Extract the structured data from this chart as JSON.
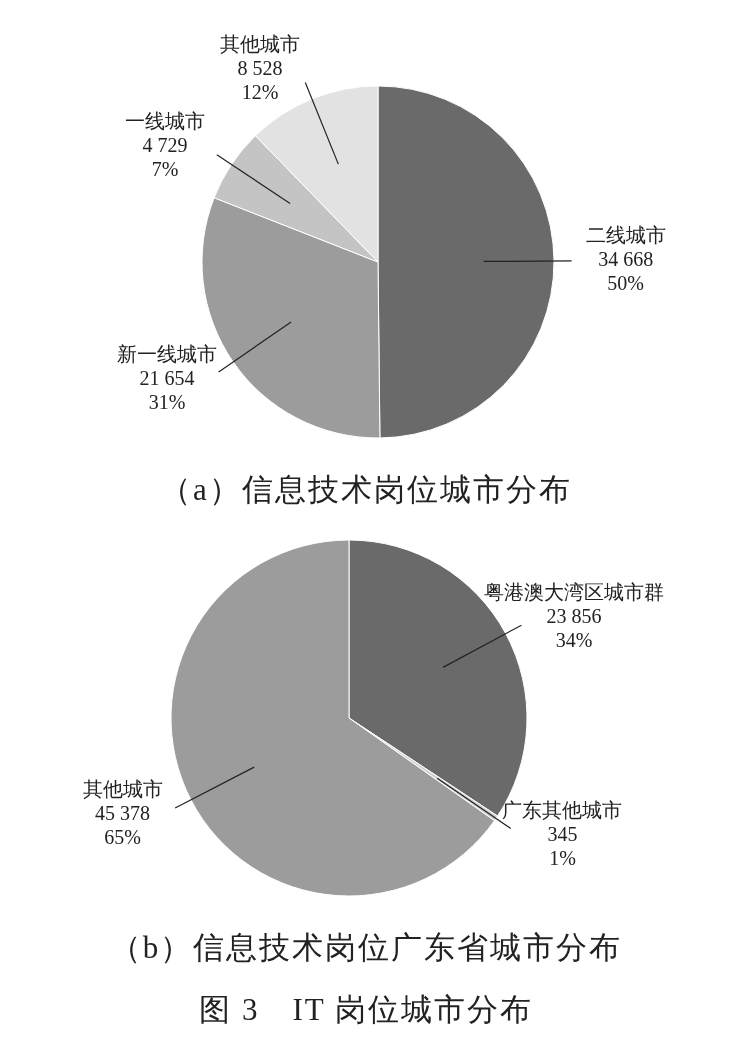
{
  "chart_data": [
    {
      "type": "pie",
      "title": "（a）信息技术岗位城市分布",
      "categories": [
        "二线城市",
        "新一线城市",
        "一线城市",
        "其他城市"
      ],
      "values": [
        34668,
        21654,
        4729,
        8528
      ],
      "value_labels": [
        "34 668\n50%",
        "21 654\n31%",
        "4 729\n7%",
        "8 528\n12%"
      ],
      "colors": [
        "#6a6a6a",
        "#9c9c9c",
        "#c4c4c4",
        "#e2e2e2"
      ]
    },
    {
      "type": "pie",
      "title": "（b）信息技术岗位广东省城市分布",
      "categories": [
        "粤港澳大湾区城市群",
        "广东其他城市",
        "其他城市"
      ],
      "values": [
        23856,
        345,
        45378
      ],
      "value_labels": [
        "23 856\n34%",
        "345\n1%",
        "45 378\n65%"
      ],
      "colors": [
        "#6a6a6a",
        "#d0d0d0",
        "#9c9c9c"
      ],
      "annotations": [
        "图 3　IT 岗位城市分布"
      ]
    }
  ]
}
